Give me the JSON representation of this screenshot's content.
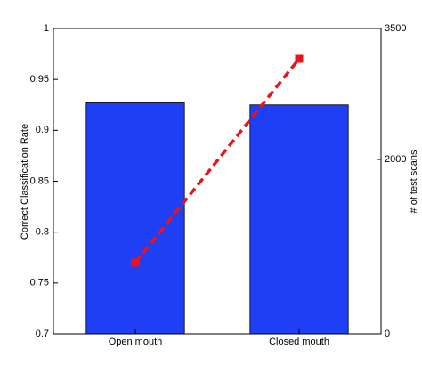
{
  "chart_data": {
    "type": "bar",
    "categories": [
      "Open mouth",
      "Closed mouth"
    ],
    "ylabel": "Correct Classification Rate",
    "y2label": "# of test scans",
    "ylim": [
      0.7,
      1
    ],
    "yticks": [
      0.7,
      0.75,
      0.8,
      0.85,
      0.9,
      0.95,
      1
    ],
    "y2lim": [
      0,
      3500
    ],
    "y2ticks": [
      0,
      2000,
      3500
    ],
    "series": [
      {
        "type": "bar",
        "color": "#1f3ff4",
        "values": [
          0.927,
          0.925
        ]
      },
      {
        "type": "line",
        "axis": "y2",
        "color": "#e8141a",
        "values": [
          816,
          3153
        ]
      }
    ]
  }
}
